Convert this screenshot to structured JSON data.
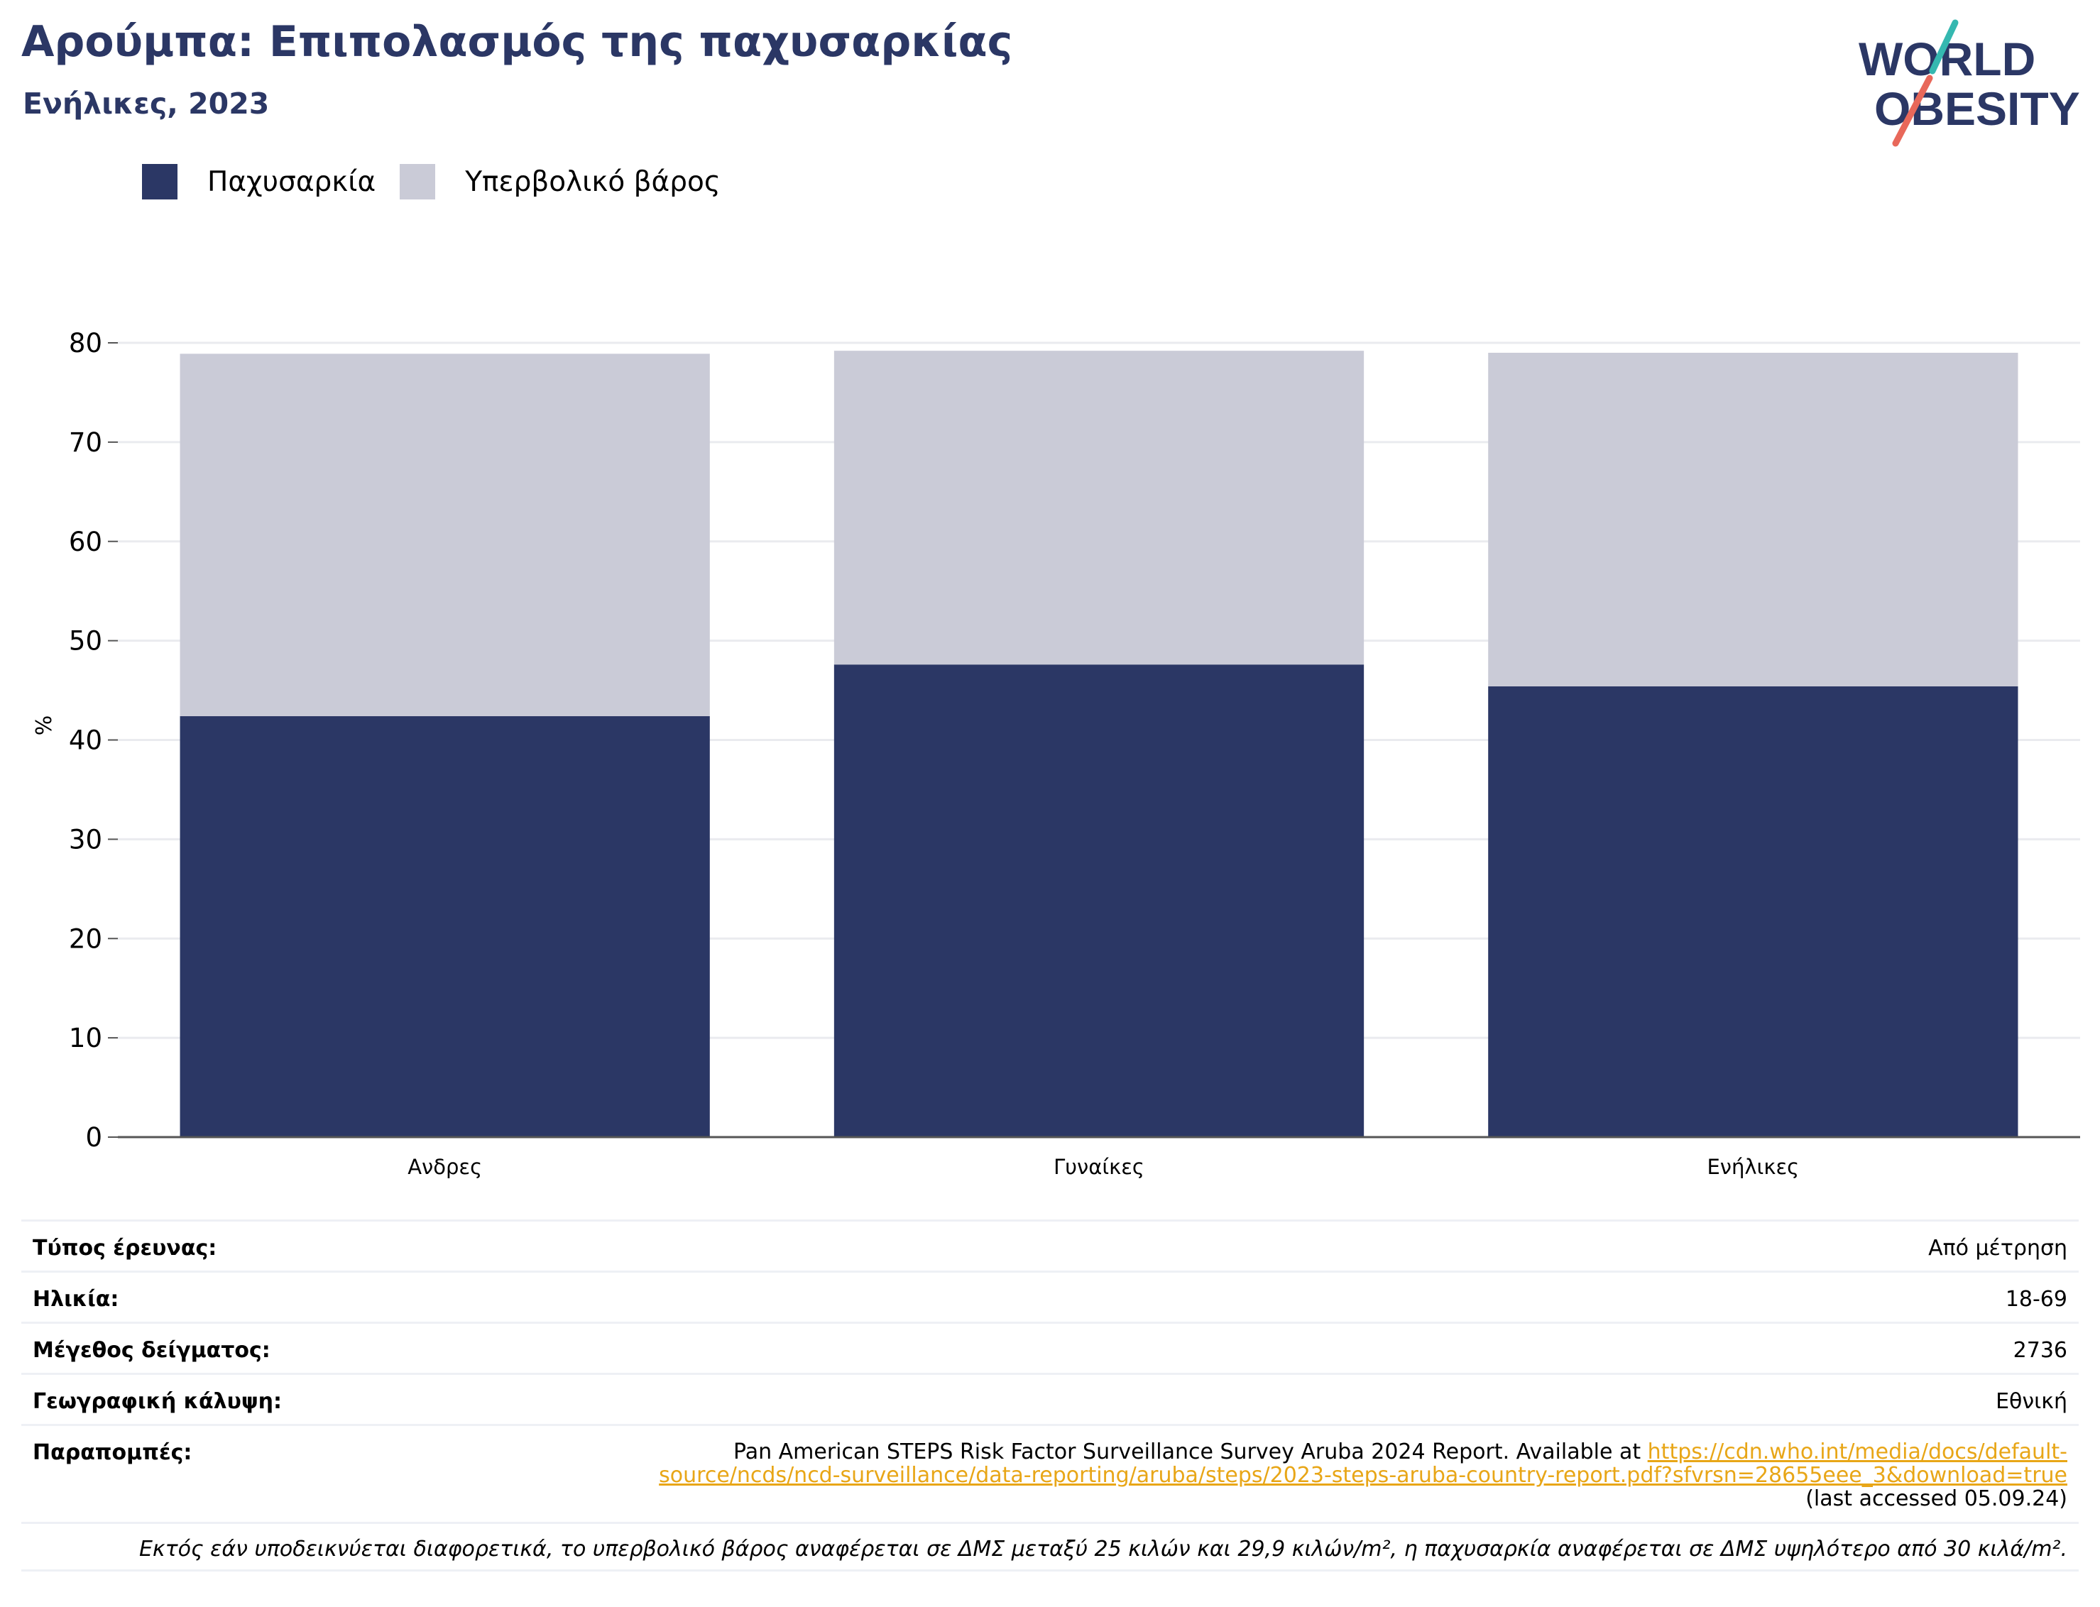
{
  "header": {
    "title": "Αρούμπα: Επιπολασμός της παχυσαρκίας",
    "subtitle": "Ενήλικες, 2023",
    "logo_line1": "WORLD",
    "logo_line2": "OBESITY"
  },
  "colors": {
    "obesity": "#2b3765",
    "overweight": "#cacbd7",
    "grid": "#eaebef",
    "axis": "#555555",
    "link": "#e8a617",
    "logo_teal": "#35b8b0",
    "logo_red": "#e8685a"
  },
  "legend": [
    {
      "label": "Παχυσαρκία",
      "color_key": "obesity"
    },
    {
      "label": "Υπερβολικό βάρος",
      "color_key": "overweight"
    }
  ],
  "chart_data": {
    "type": "bar",
    "stacked": true,
    "categories": [
      "Ανδρες",
      "Γυναίκες",
      "Ενήλικες"
    ],
    "series": [
      {
        "name": "Παχυσαρκία",
        "values": [
          42.4,
          47.6,
          45.4
        ]
      },
      {
        "name": "Υπερβολικό βάρος",
        "values": [
          36.5,
          31.6,
          33.6
        ]
      }
    ],
    "ylabel": "%",
    "ylim": [
      0,
      80
    ],
    "yticks": [
      0,
      10,
      20,
      30,
      40,
      50,
      60,
      70,
      80
    ],
    "grid": true,
    "legend_position": "top-left"
  },
  "meta": {
    "survey_type_label": "Τύπος έρευνας:",
    "survey_type_value": "Από μέτρηση",
    "age_label": "Ηλικία:",
    "age_value": "18-69",
    "sample_label": "Μέγεθος δείγματος:",
    "sample_value": "2736",
    "coverage_label": "Γεωγραφική κάλυψη:",
    "coverage_value": "Εθνική",
    "refs_label": "Παραπομπές:",
    "refs_text": "Pan American STEPS Risk Factor Surveillance Survey Aruba 2024 Report. Available at",
    "refs_link": "https://cdn.who.int/media/docs/default-source/ncds/ncd-surveillance/data-reporting/aruba/steps/2023-steps-aruba-country-report.pdf?sfvrsn=28655eee_3&download=true",
    "refs_suffix": "(last accessed 05.09.24)",
    "footnote": "Εκτός εάν υποδεικνύεται διαφορετικά, το υπερβολικό βάρος αναφέρεται σε ΔΜΣ μεταξύ 25 κιλών και 29,9 κιλών/m², η παχυσαρκία αναφέρεται σε ΔΜΣ υψηλότερο από 30 κιλά/m²."
  }
}
